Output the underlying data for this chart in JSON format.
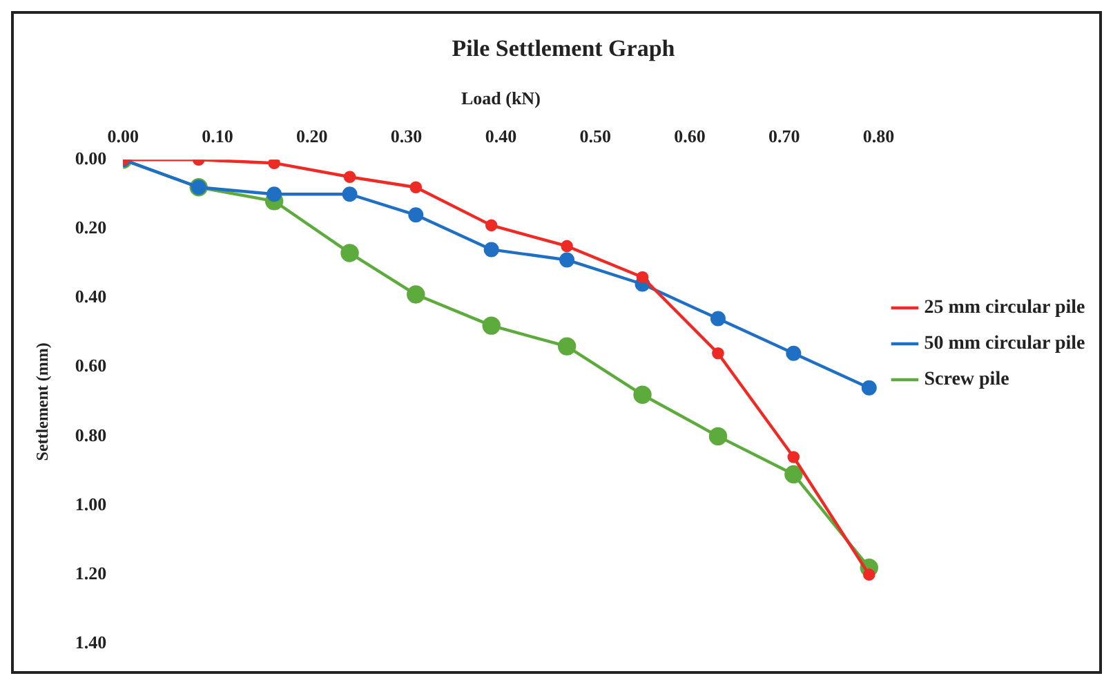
{
  "chart_data": {
    "type": "line",
    "title": "Pile Settlement Graph",
    "xlabel": "Load (kN)",
    "ylabel": "Settlement (mm)",
    "x": [
      0,
      0.08,
      0.16,
      0.24,
      0.31,
      0.39,
      0.47,
      0.55,
      0.63,
      0.71,
      0.79
    ],
    "xlim": [
      0,
      0.8
    ],
    "xticks": [
      {
        "value": 0,
        "label": "0.00"
      },
      {
        "value": 0.1,
        "label": "0.10"
      },
      {
        "value": 0.2,
        "label": "0.20"
      },
      {
        "value": 0.3,
        "label": "0.30"
      },
      {
        "value": 0.4,
        "label": "0.40"
      },
      {
        "value": 0.5,
        "label": "0.50"
      },
      {
        "value": 0.6,
        "label": "0.60"
      },
      {
        "value": 0.7,
        "label": "0.70"
      },
      {
        "value": 0.8,
        "label": "0.80"
      }
    ],
    "ylim": [
      1.4,
      0
    ],
    "yticks": [
      {
        "value": 0,
        "label": "0.00"
      },
      {
        "value": 0.2,
        "label": "0.20"
      },
      {
        "value": 0.4,
        "label": "0.40"
      },
      {
        "value": 0.6,
        "label": "0.60"
      },
      {
        "value": 0.8,
        "label": "0.80"
      },
      {
        "value": 1,
        "label": "1.00"
      },
      {
        "value": 1.2,
        "label": "1.20"
      },
      {
        "value": 1.4,
        "label": "1.40"
      }
    ],
    "series": [
      {
        "name": "25 mm circular pile",
        "color": "#ee2a24",
        "values": [
          0,
          0,
          0.01,
          0.05,
          0.08,
          0.19,
          0.25,
          0.34,
          0.56,
          0.86,
          1.2
        ]
      },
      {
        "name": "50 mm circular pile",
        "color": "#1f6fc4",
        "values": [
          0,
          0.08,
          0.1,
          0.1,
          0.16,
          0.26,
          0.29,
          0.36,
          0.46,
          0.56,
          0.66
        ]
      },
      {
        "name": "Screw pile",
        "color": "#5cab3c",
        "values": [
          0,
          0.08,
          0.12,
          0.27,
          0.39,
          0.48,
          0.54,
          0.68,
          0.8,
          0.91,
          1.18
        ]
      }
    ],
    "marker": "circle",
    "line_style": "solid",
    "grid": false,
    "legend": "right"
  }
}
